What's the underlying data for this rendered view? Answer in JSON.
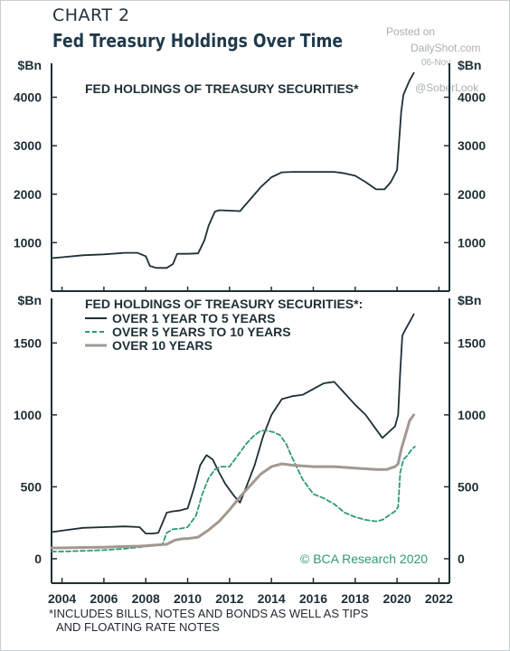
{
  "header": {
    "chart_number": "CHART 2",
    "title": "Fed Treasury Holdings Over Time"
  },
  "watermark": {
    "line1": "Posted on",
    "line2": "DailyShot.com",
    "line3": "06-Nov",
    "line4": "@SoberLook"
  },
  "footnote": {
    "line1": "*INCLUDES BILLS, NOTES AND BONDS AS WELL AS TIPS",
    "line2": "AND FLOATING RATE NOTES"
  },
  "colors": {
    "navy": "#1d2f36",
    "teal": "#2e9a73",
    "taupe": "#a39890",
    "axis": "#1d2f36"
  },
  "chart_data": [
    {
      "type": "line",
      "panel": "top",
      "title": "FED HOLDINGS OF TREASURY SECURITIES*",
      "ylabel_left": "$Bn",
      "ylabel_right": "$Bn",
      "yticks": [
        1000,
        2000,
        3000,
        4000
      ],
      "ylim": [
        0,
        4700
      ],
      "xlim": [
        2003.5,
        2022.5
      ],
      "series": [
        {
          "color": "#1d2f36",
          "x": [
            2003.5,
            2004.0,
            2005.0,
            2006.0,
            2007.0,
            2007.6,
            2008.0,
            2008.2,
            2008.5,
            2009.0,
            2009.3,
            2009.5,
            2010.0,
            2010.5,
            2010.8,
            2011.0,
            2011.3,
            2011.5,
            2012.0,
            2012.5,
            2013.0,
            2013.5,
            2014.0,
            2014.5,
            2015.0,
            2016.0,
            2017.0,
            2017.5,
            2018.0,
            2018.5,
            2019.0,
            2019.4,
            2019.7,
            2020.0,
            2020.1,
            2020.2,
            2020.3,
            2020.4,
            2020.6,
            2020.8
          ],
          "y": [
            680,
            700,
            740,
            760,
            790,
            790,
            720,
            520,
            480,
            480,
            560,
            770,
            770,
            780,
            1050,
            1350,
            1640,
            1670,
            1660,
            1650,
            1900,
            2150,
            2350,
            2450,
            2460,
            2460,
            2460,
            2430,
            2380,
            2250,
            2100,
            2100,
            2250,
            2500,
            3100,
            3700,
            4050,
            4150,
            4350,
            4500
          ]
        }
      ]
    },
    {
      "type": "line",
      "panel": "bottom",
      "title": "FED HOLDINGS OF TREASURY SECURITIES*:",
      "ylabel_left": "$Bn",
      "ylabel_right": "$Bn",
      "yticks": [
        0,
        500,
        1000,
        1500
      ],
      "ylim": [
        -170,
        1810
      ],
      "xlim": [
        2003.5,
        2022.5
      ],
      "xticks": [
        2004,
        2006,
        2008,
        2010,
        2012,
        2014,
        2016,
        2018,
        2020,
        2022
      ],
      "annotation": "© BCA Research 2020",
      "series": [
        {
          "name": "OVER 1 YEAR TO 5 YEARS",
          "color": "#1d2f36",
          "dash": "solid",
          "x": [
            2003.5,
            2004.0,
            2005.0,
            2006.0,
            2007.0,
            2007.7,
            2008.0,
            2008.3,
            2008.6,
            2009.0,
            2009.3,
            2009.6,
            2010.0,
            2010.3,
            2010.6,
            2010.9,
            2011.2,
            2011.5,
            2011.8,
            2012.2,
            2012.5,
            2012.8,
            2013.2,
            2013.6,
            2014.0,
            2014.5,
            2015.0,
            2015.5,
            2016.0,
            2016.5,
            2017.0,
            2017.5,
            2018.0,
            2018.5,
            2019.0,
            2019.3,
            2019.6,
            2019.9,
            2020.05,
            2020.15,
            2020.25,
            2020.35,
            2020.5,
            2020.65,
            2020.8
          ],
          "y": [
            185,
            195,
            215,
            220,
            225,
            220,
            175,
            175,
            180,
            320,
            330,
            335,
            350,
            490,
            650,
            720,
            690,
            600,
            520,
            440,
            390,
            500,
            650,
            850,
            1000,
            1110,
            1130,
            1140,
            1180,
            1220,
            1230,
            1150,
            1070,
            1000,
            900,
            840,
            880,
            920,
            1000,
            1300,
            1550,
            1580,
            1620,
            1660,
            1700
          ]
        },
        {
          "name": "OVER 5 YEARS TO 10 YEARS",
          "color": "#2e9a73",
          "dash": "dashed",
          "x": [
            2003.5,
            2004.0,
            2005.0,
            2006.0,
            2007.0,
            2007.7,
            2008.0,
            2008.4,
            2008.8,
            2009.0,
            2009.3,
            2009.7,
            2010.0,
            2010.4,
            2010.7,
            2011.0,
            2011.3,
            2011.6,
            2012.0,
            2012.4,
            2012.8,
            2013.2,
            2013.5,
            2013.8,
            2014.1,
            2014.4,
            2014.7,
            2015.0,
            2015.5,
            2016.0,
            2016.5,
            2017.0,
            2017.5,
            2018.0,
            2018.5,
            2019.0,
            2019.3,
            2019.6,
            2019.9,
            2020.05,
            2020.15,
            2020.3,
            2020.5,
            2020.7,
            2020.85
          ],
          "y": [
            50,
            50,
            55,
            60,
            70,
            80,
            85,
            90,
            100,
            180,
            205,
            210,
            220,
            300,
            450,
            560,
            620,
            640,
            640,
            720,
            800,
            860,
            890,
            890,
            880,
            860,
            800,
            700,
            550,
            450,
            420,
            380,
            320,
            290,
            270,
            260,
            270,
            300,
            330,
            360,
            600,
            690,
            720,
            760,
            780
          ]
        },
        {
          "name": "OVER 10 YEARS",
          "color": "#a39890",
          "dash": "solid",
          "x": [
            2003.5,
            2004.0,
            2005.0,
            2006.0,
            2007.0,
            2007.7,
            2008.0,
            2008.5,
            2009.0,
            2009.4,
            2009.8,
            2010.0,
            2010.5,
            2011.0,
            2011.5,
            2012.0,
            2012.5,
            2013.0,
            2013.5,
            2014.0,
            2014.5,
            2015.0,
            2016.0,
            2017.0,
            2018.0,
            2019.0,
            2019.5,
            2019.9,
            2020.05,
            2020.2,
            2020.4,
            2020.6,
            2020.8
          ],
          "y": [
            75,
            75,
            78,
            80,
            85,
            88,
            90,
            95,
            100,
            130,
            140,
            140,
            150,
            200,
            260,
            340,
            430,
            510,
            590,
            640,
            660,
            650,
            640,
            640,
            630,
            620,
            620,
            640,
            660,
            760,
            860,
            960,
            1000
          ]
        }
      ]
    }
  ]
}
